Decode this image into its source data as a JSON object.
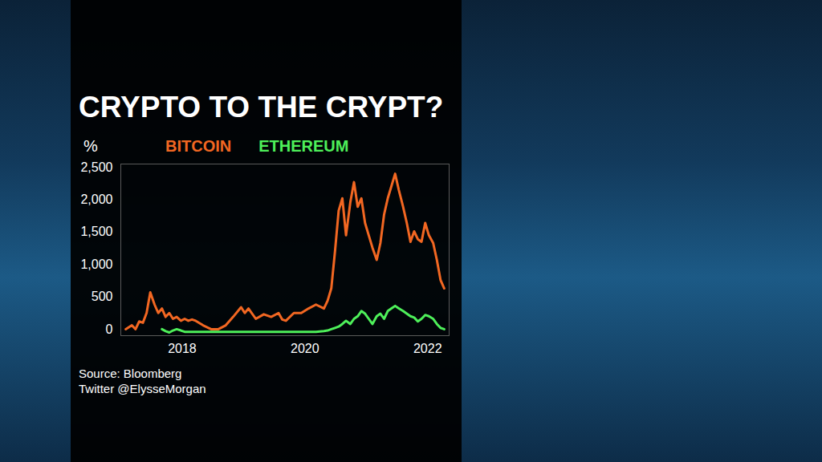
{
  "chart_data": {
    "type": "line",
    "title": "CRYPTO TO THE CRYPT?",
    "y_label": "%",
    "annotations": [
      "Source: Bloomberg",
      "Twitter @ElysseMorgan"
    ],
    "x": [
      2017.08,
      2017.18,
      2017.24,
      2017.3,
      2017.36,
      2017.42,
      2017.48,
      2017.55,
      2017.61,
      2017.67,
      2017.73,
      2017.79,
      2017.85,
      2017.91,
      2017.98,
      2018.04,
      2018.1,
      2018.16,
      2018.22,
      2018.34,
      2018.47,
      2018.59,
      2018.71,
      2018.83,
      2018.96,
      2019.02,
      2019.08,
      2019.2,
      2019.33,
      2019.45,
      2019.57,
      2019.63,
      2019.69,
      2019.82,
      2019.94,
      2020.06,
      2020.18,
      2020.31,
      2020.37,
      2020.43,
      2020.49,
      2020.55,
      2020.61,
      2020.67,
      2020.74,
      2020.8,
      2020.86,
      2020.92,
      2020.98,
      2021.04,
      2021.1,
      2021.17,
      2021.23,
      2021.29,
      2021.35,
      2021.41,
      2021.47,
      2021.53,
      2021.6,
      2021.66,
      2021.72,
      2021.78,
      2021.84,
      2021.9,
      2021.96,
      2022.02,
      2022.09,
      2022.15,
      2022.21,
      2022.27
    ],
    "series": [
      {
        "name": "BITCOIN",
        "color": "#f26722",
        "values": [
          0,
          60,
          0,
          120,
          100,
          250,
          570,
          380,
          250,
          320,
          190,
          250,
          160,
          190,
          130,
          160,
          130,
          150,
          130,
          60,
          0,
          0,
          60,
          190,
          340,
          250,
          320,
          160,
          230,
          190,
          250,
          150,
          130,
          250,
          250,
          320,
          380,
          320,
          440,
          630,
          1200,
          1830,
          2020,
          1450,
          1960,
          2270,
          1890,
          2020,
          1640,
          1450,
          1260,
          1070,
          1330,
          1770,
          2020,
          2210,
          2400,
          2150,
          1890,
          1640,
          1350,
          1510,
          1390,
          1350,
          1640,
          1450,
          1330,
          1070,
          760,
          630
        ]
      },
      {
        "name": "ETHEREUM",
        "color": "#4ef05a",
        "values": [
          null,
          null,
          null,
          null,
          null,
          null,
          null,
          null,
          null,
          0,
          -30,
          -50,
          -20,
          0,
          -20,
          -40,
          -40,
          -40,
          -40,
          -40,
          -40,
          -40,
          -40,
          -40,
          -40,
          -40,
          -40,
          -40,
          -40,
          -40,
          -40,
          -40,
          -40,
          -40,
          -40,
          -40,
          -40,
          -30,
          -20,
          0,
          20,
          40,
          80,
          130,
          80,
          160,
          200,
          280,
          240,
          160,
          80,
          200,
          240,
          160,
          280,
          320,
          360,
          320,
          280,
          240,
          200,
          180,
          120,
          160,
          220,
          200,
          160,
          80,
          20,
          0
        ]
      }
    ],
    "xlim": [
      2017.0,
      2022.35
    ],
    "xticks": [
      2018,
      2020,
      2022
    ],
    "ylim": [
      -100,
      2550
    ],
    "yticks": [
      0,
      500,
      {
        "value": 1000,
        "label": "1,000"
      },
      {
        "value": 1500,
        "label": "1,500"
      },
      {
        "value": 2000,
        "label": "2,000"
      },
      {
        "value": 2500,
        "label": "2,500"
      }
    ],
    "grid": false,
    "legend": "top"
  }
}
